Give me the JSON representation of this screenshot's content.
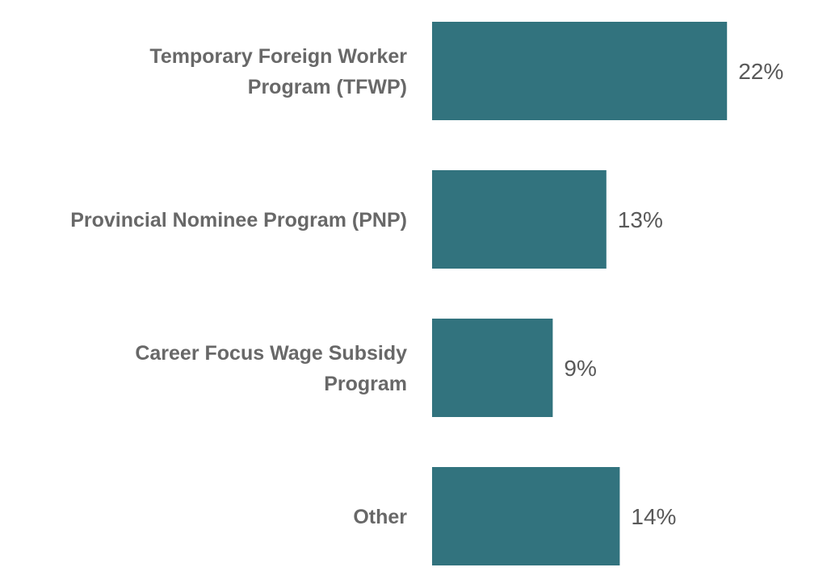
{
  "chart_data": {
    "type": "bar",
    "orientation": "horizontal",
    "categories": [
      [
        "Temporary Foreign Worker",
        "Program (TFWP)"
      ],
      [
        "Provincial Nominee Program (PNP)"
      ],
      [
        "Career Focus Wage Subsidy",
        "Program"
      ],
      [
        "Other"
      ]
    ],
    "values": [
      22,
      13,
      9,
      14
    ],
    "data_labels": [
      "22%",
      "13%",
      "9%",
      "14%"
    ],
    "unit": "%",
    "xlim": [
      0,
      30
    ],
    "grid": false,
    "legend": "none",
    "bar_color": "#32737E"
  }
}
